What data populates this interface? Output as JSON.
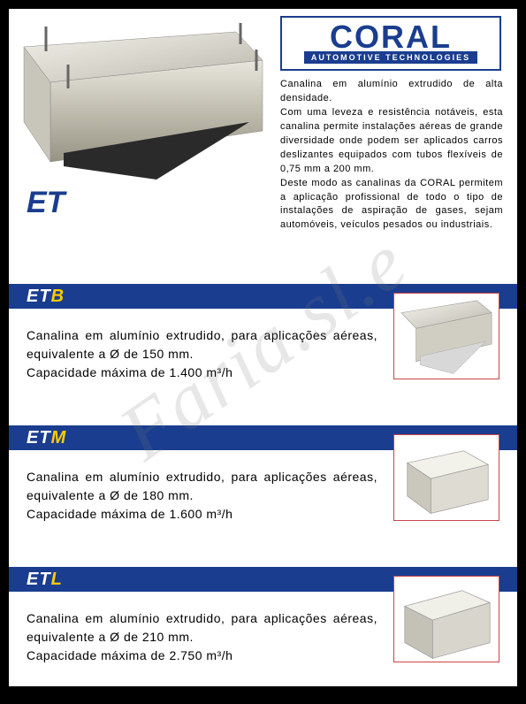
{
  "brand": {
    "name": "CORAL",
    "subtitle": "AUTOMOTIVE TECHNOLOGIES",
    "logo_color": "#1a3d8f",
    "logo_bg": "#ffffff"
  },
  "main_label": "ET",
  "intro": "Canalina em alumínio extrudido de alta densidade.\nCom uma leveza e resistência notáveis, esta canalina permite instalações aéreas de grande diversidade onde podem ser aplicados carros deslizantes equipados com tubos flexíveis de 0,75 mm a 200 mm.\nDeste modo as canalinas da CORAL permitem a aplicação profissional de todo o tipo de instalações de aspiração de gases, sejam automóveis, veículos pesados ou industriais.",
  "sections": [
    {
      "code": "ET",
      "suffix": "B",
      "text": "Canalina em alumínio extrudido, para aplicações aéreas, equivalente a Ø de 150 mm.\nCapacidade máxima de 1.400 m³/h",
      "diameter_mm": 150,
      "capacity_m3h": 1400
    },
    {
      "code": "ET",
      "suffix": "M",
      "text": "Canalina em alumínio extrudido, para aplicações aéreas, equivalente a Ø de 180 mm.\nCapacidade máxima de 1.600 m³/h",
      "diameter_mm": 180,
      "capacity_m3h": 1600
    },
    {
      "code": "ET",
      "suffix": "L",
      "text": "Canalina em alumínio extrudido, para aplicações aéreas, equivalente a Ø de 210 mm.\nCapacidade máxima de 2.750 m³/h",
      "diameter_mm": 210,
      "capacity_m3h": 2750
    }
  ],
  "watermark": "Faria.sl.e",
  "colors": {
    "page_bg": "#ffffff",
    "outer_bg": "#000000",
    "bar_bg": "#1a3d8f",
    "suffix_color": "#ffcc00",
    "img_border": "#cc4444",
    "text": "#000000"
  }
}
